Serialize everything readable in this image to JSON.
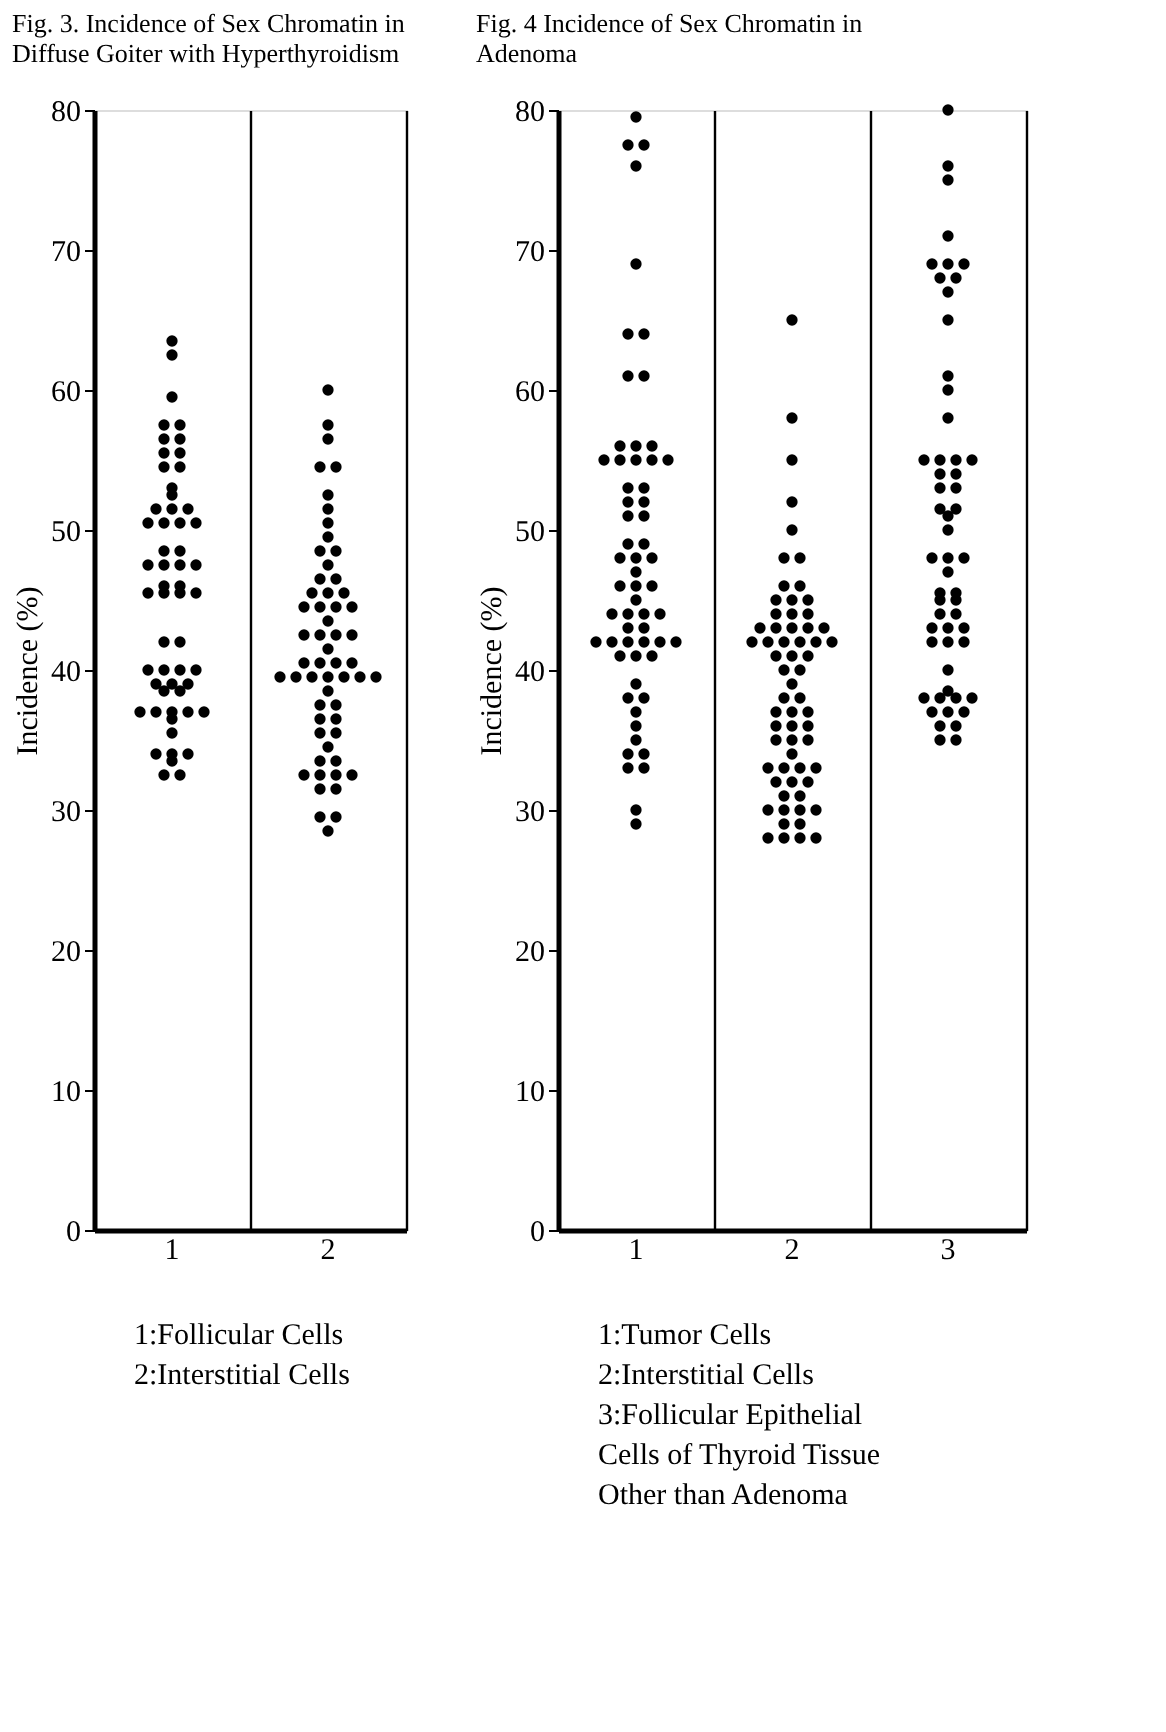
{
  "chart_data": [
    {
      "type": "scatter",
      "title": "Fig. 3.  Incidence of Sex Chromatin in Diffuse Goiter with Hyperthyroidism",
      "ylabel": "Incidence (%)",
      "categories": [
        "1",
        "2"
      ],
      "ylim": [
        0,
        80
      ],
      "yticks": [
        0,
        10,
        20,
        30,
        40,
        50,
        60,
        70,
        80
      ],
      "grid": "x",
      "legend": false,
      "marker": "circle",
      "annotations": [
        "1:Follicular Cells",
        "2:Interstitial Cells"
      ],
      "series": [
        {
          "color": "#000000",
          "x": [
            "1",
            "1",
            "1",
            "1",
            "1",
            "1",
            "1",
            "1",
            "1",
            "1",
            "1",
            "1",
            "1",
            "1",
            "1",
            "1",
            "1",
            "1",
            "1",
            "1",
            "1",
            "1",
            "1",
            "1",
            "1",
            "1",
            "1",
            "1",
            "1",
            "1",
            "1",
            "1",
            "1",
            "1",
            "1",
            "1",
            "1",
            "1",
            "1",
            "1",
            "1",
            "1",
            "1",
            "1",
            "1",
            "1",
            "1",
            "1",
            "1",
            "1",
            "1",
            "1",
            "1",
            "1",
            "1",
            "1"
          ],
          "values": [
            63.5,
            62.5,
            59.5,
            57.5,
            57.5,
            56.5,
            56.5,
            55.5,
            55.5,
            54.5,
            54.5,
            53,
            52.5,
            51.5,
            51.5,
            51.5,
            50.5,
            50.5,
            50.5,
            50.5,
            48.5,
            48.5,
            47.5,
            47.5,
            47.5,
            47.5,
            46,
            46,
            45.5,
            45.5,
            45.5,
            45.5,
            42,
            42,
            40,
            40,
            40,
            40,
            39,
            39,
            39,
            38.5,
            38.5,
            37,
            37,
            37,
            37,
            37,
            36.5,
            35.5,
            34,
            34,
            34,
            33.5,
            32.5,
            32.5
          ]
        },
        {
          "color": "#000000",
          "x": [
            "2",
            "2",
            "2",
            "2",
            "2",
            "2",
            "2",
            "2",
            "2",
            "2",
            "2",
            "2",
            "2",
            "2",
            "2",
            "2",
            "2",
            "2",
            "2",
            "2",
            "2",
            "2",
            "2",
            "2",
            "2",
            "2",
            "2",
            "2",
            "2",
            "2",
            "2",
            "2",
            "2",
            "2",
            "2",
            "2",
            "2",
            "2",
            "2",
            "2",
            "2",
            "2",
            "2",
            "2",
            "2",
            "2",
            "2",
            "2",
            "2",
            "2",
            "2",
            "2",
            "2",
            "2",
            "2",
            "2",
            "2"
          ],
          "values": [
            60,
            57.5,
            56.5,
            54.5,
            54.5,
            52.5,
            51.5,
            50.5,
            49.5,
            48.5,
            48.5,
            47.5,
            46.5,
            46.5,
            45.5,
            45.5,
            45.5,
            44.5,
            44.5,
            44.5,
            44.5,
            43.5,
            42.5,
            42.5,
            42.5,
            42.5,
            41.5,
            40.5,
            40.5,
            40.5,
            40.5,
            39.5,
            39.5,
            39.5,
            39.5,
            39.5,
            39.5,
            39.5,
            38.5,
            37.5,
            37.5,
            36.5,
            36.5,
            35.5,
            35.5,
            34.5,
            33.5,
            33.5,
            32.5,
            32.5,
            32.5,
            32.5,
            31.5,
            31.5,
            29.5,
            29.5,
            28.5
          ]
        }
      ]
    },
    {
      "type": "scatter",
      "title": "Fig. 4  Incidence of Sex Chromatin in Adenoma",
      "ylabel": "Incidence (%)",
      "categories": [
        "1",
        "2",
        "3"
      ],
      "ylim": [
        0,
        80
      ],
      "yticks": [
        0,
        10,
        20,
        30,
        40,
        50,
        60,
        70,
        80
      ],
      "grid": "x",
      "legend": false,
      "marker": "circle",
      "annotations": [
        "1:Tumor Cells",
        "2:Interstitial Cells",
        "3:Follicular Epithelial Cells of Thyroid Tissue Other than Adenoma"
      ],
      "series": [
        {
          "color": "#000000",
          "x": [
            "1",
            "1",
            "1",
            "1",
            "1",
            "1",
            "1",
            "1",
            "1",
            "1",
            "1",
            "1",
            "1",
            "1",
            "1",
            "1",
            "1",
            "1",
            "1",
            "1",
            "1",
            "1",
            "1",
            "1",
            "1",
            "1",
            "1",
            "1",
            "1",
            "1",
            "1",
            "1",
            "1",
            "1",
            "1",
            "1",
            "1",
            "1",
            "1",
            "1",
            "1",
            "1",
            "1",
            "1",
            "1",
            "1",
            "1",
            "1",
            "1",
            "1",
            "1",
            "1",
            "1",
            "1",
            "1",
            "1",
            "1",
            "1",
            "1",
            "1"
          ],
          "values": [
            79.5,
            77.5,
            77.5,
            76,
            69,
            64,
            64,
            61,
            61,
            56,
            56,
            56,
            55,
            55,
            55,
            55,
            55,
            53,
            53,
            52,
            52,
            51,
            51,
            49,
            49,
            48,
            48,
            48,
            47,
            46,
            46,
            46,
            45,
            44,
            44,
            44,
            44,
            43,
            43,
            42,
            42,
            42,
            42,
            42,
            42,
            41,
            41,
            41,
            39,
            38,
            38,
            37,
            36,
            35,
            34,
            34,
            33,
            33,
            30,
            29
          ]
        },
        {
          "color": "#000000",
          "x": [
            "2",
            "2",
            "2",
            "2",
            "2",
            "2",
            "2",
            "2",
            "2",
            "2",
            "2",
            "2",
            "2",
            "2",
            "2",
            "2",
            "2",
            "2",
            "2",
            "2",
            "2",
            "2",
            "2",
            "2",
            "2",
            "2",
            "2",
            "2",
            "2",
            "2",
            "2",
            "2",
            "2",
            "2",
            "2",
            "2",
            "2",
            "2",
            "2",
            "2",
            "2",
            "2",
            "2",
            "2",
            "2",
            "2",
            "2",
            "2",
            "2",
            "2",
            "2",
            "2",
            "2",
            "2",
            "2",
            "2",
            "2",
            "2",
            "2",
            "2",
            "2",
            "2",
            "2"
          ],
          "values": [
            65,
            58,
            55,
            52,
            50,
            48,
            48,
            46,
            46,
            45,
            45,
            45,
            44,
            44,
            44,
            43,
            43,
            43,
            43,
            43,
            42,
            42,
            42,
            42,
            42,
            42,
            41,
            41,
            41,
            40,
            40,
            39,
            38,
            38,
            37,
            37,
            37,
            36,
            36,
            36,
            35,
            35,
            35,
            34,
            33,
            33,
            33,
            33,
            32,
            32,
            32,
            31,
            31,
            30,
            30,
            30,
            30,
            29,
            29,
            28,
            28,
            28,
            28
          ]
        },
        {
          "color": "#000000",
          "x": [
            "3",
            "3",
            "3",
            "3",
            "3",
            "3",
            "3",
            "3",
            "3",
            "3",
            "3",
            "3",
            "3",
            "3",
            "3",
            "3",
            "3",
            "3",
            "3",
            "3",
            "3",
            "3",
            "3",
            "3",
            "3",
            "3",
            "3",
            "3",
            "3",
            "3",
            "3",
            "3",
            "3",
            "3",
            "3",
            "3",
            "3",
            "3",
            "3",
            "3",
            "3",
            "3",
            "3",
            "3",
            "3",
            "3",
            "3",
            "3",
            "3",
            "3",
            "3",
            "3",
            "3",
            "3",
            "3"
          ],
          "values": [
            80,
            76,
            75,
            71,
            69,
            69,
            69,
            68,
            68,
            67,
            65,
            61,
            60,
            58,
            55,
            55,
            55,
            55,
            54,
            54,
            53,
            53,
            51.5,
            51.5,
            51,
            50,
            48,
            48,
            48,
            47,
            45.5,
            45.5,
            45,
            45,
            44,
            44,
            43,
            43,
            43,
            42,
            42,
            42,
            40,
            38.5,
            38,
            38,
            38,
            38,
            37,
            37,
            37,
            36,
            36,
            35,
            35
          ]
        }
      ]
    }
  ]
}
